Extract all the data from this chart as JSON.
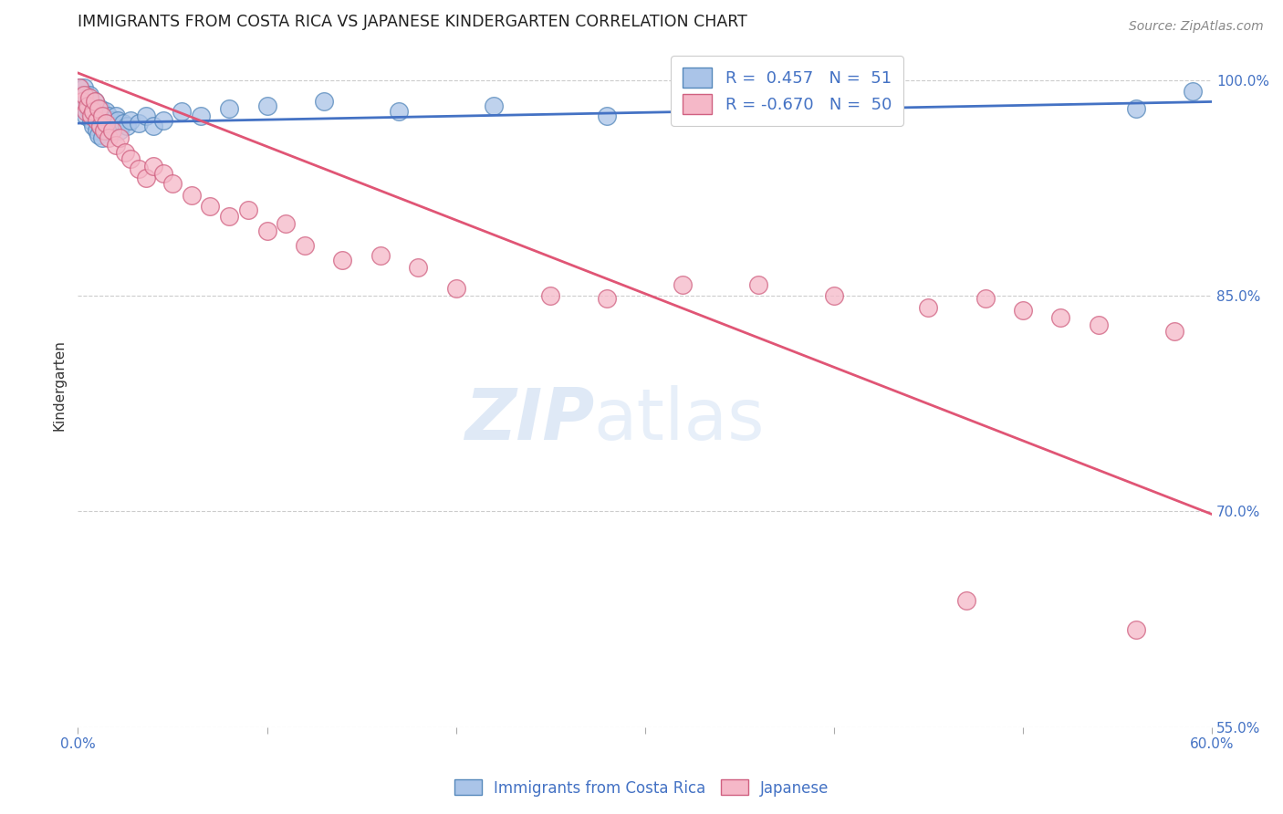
{
  "title": "IMMIGRANTS FROM COSTA RICA VS JAPANESE KINDERGARTEN CORRELATION CHART",
  "source": "Source: ZipAtlas.com",
  "ylabel": "Kindergarten",
  "xlim": [
    0.0,
    0.6
  ],
  "ylim": [
    0.595,
    1.025
  ],
  "y_tick_positions": [
    0.6,
    0.55,
    0.7,
    0.85,
    1.0
  ],
  "y_tick_labels": [
    "",
    "55.0%",
    "70.0%",
    "85.0%",
    "100.0%"
  ],
  "x_tick_positions": [
    0.0,
    0.1,
    0.2,
    0.3,
    0.4,
    0.5,
    0.6
  ],
  "blue_scatter_x": [
    0.001,
    0.002,
    0.002,
    0.003,
    0.003,
    0.004,
    0.004,
    0.005,
    0.005,
    0.006,
    0.006,
    0.007,
    0.007,
    0.008,
    0.008,
    0.009,
    0.01,
    0.01,
    0.011,
    0.011,
    0.012,
    0.012,
    0.013,
    0.013,
    0.014,
    0.015,
    0.015,
    0.016,
    0.017,
    0.018,
    0.019,
    0.02,
    0.021,
    0.022,
    0.024,
    0.026,
    0.028,
    0.032,
    0.036,
    0.04,
    0.045,
    0.055,
    0.065,
    0.08,
    0.1,
    0.13,
    0.17,
    0.22,
    0.28,
    0.56,
    0.59
  ],
  "blue_scatter_y": [
    0.995,
    0.99,
    0.985,
    0.995,
    0.98,
    0.99,
    0.975,
    0.988,
    0.982,
    0.99,
    0.978,
    0.984,
    0.972,
    0.98,
    0.968,
    0.985,
    0.978,
    0.965,
    0.975,
    0.962,
    0.98,
    0.968,
    0.975,
    0.96,
    0.972,
    0.978,
    0.965,
    0.975,
    0.968,
    0.972,
    0.968,
    0.975,
    0.972,
    0.965,
    0.97,
    0.968,
    0.972,
    0.97,
    0.975,
    0.968,
    0.972,
    0.978,
    0.975,
    0.98,
    0.982,
    0.985,
    0.978,
    0.982,
    0.975,
    0.98,
    0.992
  ],
  "blue_line_x": [
    0.0,
    0.6
  ],
  "blue_line_y": [
    0.97,
    0.985
  ],
  "pink_scatter_x": [
    0.001,
    0.002,
    0.003,
    0.004,
    0.005,
    0.006,
    0.007,
    0.008,
    0.009,
    0.01,
    0.011,
    0.012,
    0.013,
    0.014,
    0.015,
    0.016,
    0.018,
    0.02,
    0.022,
    0.025,
    0.028,
    0.032,
    0.036,
    0.04,
    0.045,
    0.05,
    0.06,
    0.07,
    0.08,
    0.09,
    0.1,
    0.11,
    0.12,
    0.14,
    0.16,
    0.18,
    0.2,
    0.25,
    0.28,
    0.32,
    0.36,
    0.4,
    0.45,
    0.47,
    0.48,
    0.5,
    0.52,
    0.54,
    0.56,
    0.58
  ],
  "pink_scatter_y": [
    0.995,
    0.985,
    0.99,
    0.978,
    0.982,
    0.988,
    0.975,
    0.978,
    0.985,
    0.972,
    0.98,
    0.968,
    0.975,
    0.965,
    0.97,
    0.96,
    0.965,
    0.955,
    0.96,
    0.95,
    0.945,
    0.938,
    0.932,
    0.94,
    0.935,
    0.928,
    0.92,
    0.912,
    0.905,
    0.91,
    0.895,
    0.9,
    0.885,
    0.875,
    0.878,
    0.87,
    0.855,
    0.85,
    0.848,
    0.858,
    0.858,
    0.85,
    0.842,
    0.638,
    0.848,
    0.84,
    0.835,
    0.83,
    0.618,
    0.825
  ],
  "pink_line_x": [
    0.0,
    0.6
  ],
  "pink_line_y": [
    1.005,
    0.698
  ],
  "background_color": "#ffffff",
  "grid_color": "#cccccc",
  "title_color": "#222222",
  "axis_color": "#4472c4",
  "ylabel_color": "#333333",
  "scatter_blue_fill": "#aac4e8",
  "scatter_blue_edge": "#5588bb",
  "scatter_pink_fill": "#f5b8c8",
  "scatter_pink_edge": "#d06080",
  "line_blue_color": "#4472c4",
  "line_pink_color": "#e05575",
  "legend_text_color": "#4472c4"
}
